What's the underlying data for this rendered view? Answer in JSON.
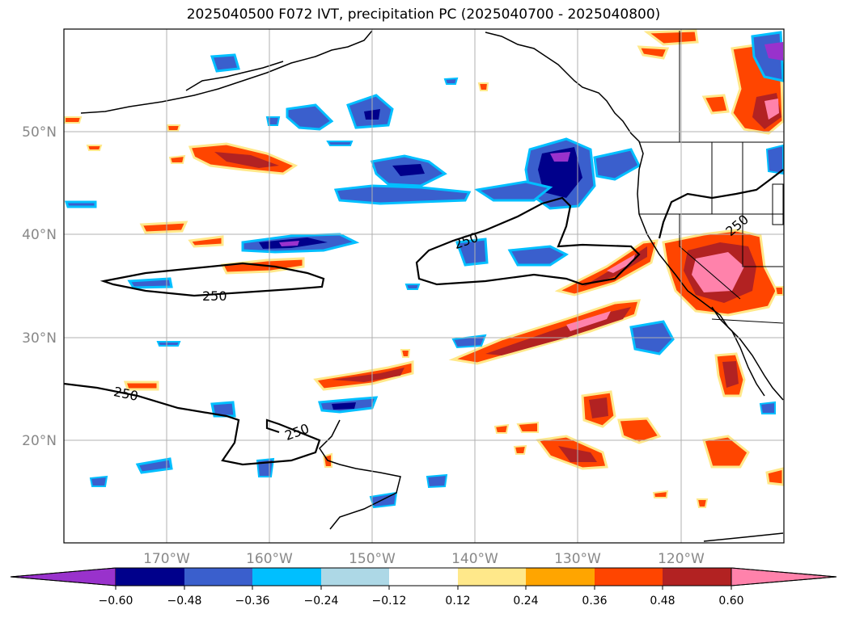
{
  "title": "2025040500 F072 IVT, precipitation PC (2025040700 - 2025040800)",
  "map": {
    "lat_labels": [
      "50°N",
      "40°N",
      "30°N",
      "20°N"
    ],
    "lon_labels": [
      "170°W",
      "160°W",
      "150°W",
      "140°W",
      "130°W",
      "120°W"
    ],
    "ivt_contour_level": "250",
    "contour_labels": [
      "250",
      "250",
      "250",
      "250",
      "250"
    ]
  },
  "colorbar": {
    "ticks": [
      "−0.60",
      "−0.48",
      "−0.36",
      "−0.24",
      "−0.12",
      "0.12",
      "0.24",
      "0.36",
      "0.48",
      "0.60"
    ],
    "colors": [
      "#9932cc",
      "#00008b",
      "#3a5fcd",
      "#00bfff",
      "#add8e6",
      "#ffffff",
      "#ffe88a",
      "#ffa500",
      "#ff4500",
      "#b22222",
      "#ff82ab"
    ],
    "extend": "both"
  }
}
